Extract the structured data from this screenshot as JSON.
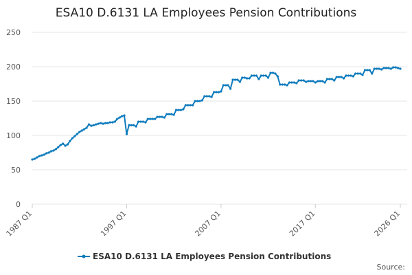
{
  "chart_data": {
    "type": "line",
    "title": "ESA10 D.6131 LA Employees Pension Contributions",
    "source": "Source:",
    "x": [
      "1987 Q1",
      "1987 Q2",
      "1987 Q3",
      "1987 Q4",
      "1988 Q1",
      "1988 Q2",
      "1988 Q3",
      "1988 Q4",
      "1989 Q1",
      "1989 Q2",
      "1989 Q3",
      "1989 Q4",
      "1990 Q1",
      "1990 Q2",
      "1990 Q3",
      "1990 Q4",
      "1991 Q1",
      "1991 Q2",
      "1991 Q3",
      "1991 Q4",
      "1992 Q1",
      "1992 Q2",
      "1992 Q3",
      "1992 Q4",
      "1993 Q1",
      "1993 Q2",
      "1993 Q3",
      "1993 Q4",
      "1994 Q1",
      "1994 Q2",
      "1994 Q3",
      "1994 Q4",
      "1995 Q1",
      "1995 Q2",
      "1995 Q3",
      "1995 Q4",
      "1996 Q1",
      "1996 Q2",
      "1996 Q3",
      "1996 Q4",
      "1997 Q1",
      "1997 Q2",
      "1997 Q3",
      "1997 Q4",
      "1998 Q1",
      "1998 Q2",
      "1998 Q3",
      "1998 Q4",
      "1999 Q1",
      "1999 Q2",
      "1999 Q3",
      "1999 Q4",
      "2000 Q1",
      "2000 Q2",
      "2000 Q3",
      "2000 Q4",
      "2001 Q1",
      "2001 Q2",
      "2001 Q3",
      "2001 Q4",
      "2002 Q1",
      "2002 Q2",
      "2002 Q3",
      "2002 Q4",
      "2003 Q1",
      "2003 Q2",
      "2003 Q3",
      "2003 Q4",
      "2004 Q1",
      "2004 Q2",
      "2004 Q3",
      "2004 Q4",
      "2005 Q1",
      "2005 Q2",
      "2005 Q3",
      "2005 Q4",
      "2006 Q1",
      "2006 Q2",
      "2006 Q3",
      "2006 Q4",
      "2007 Q1",
      "2007 Q2",
      "2007 Q3",
      "2007 Q4",
      "2008 Q1",
      "2008 Q2",
      "2008 Q3",
      "2008 Q4",
      "2009 Q1",
      "2009 Q2",
      "2009 Q3",
      "2009 Q4",
      "2010 Q1",
      "2010 Q2",
      "2010 Q3",
      "2010 Q4",
      "2011 Q1",
      "2011 Q2",
      "2011 Q3",
      "2011 Q4",
      "2012 Q1",
      "2012 Q2",
      "2012 Q3",
      "2012 Q4",
      "2013 Q1",
      "2013 Q2",
      "2013 Q3",
      "2013 Q4",
      "2014 Q1",
      "2014 Q2",
      "2014 Q3",
      "2014 Q4",
      "2015 Q1",
      "2015 Q2",
      "2015 Q3",
      "2015 Q4",
      "2016 Q1",
      "2016 Q2",
      "2016 Q3",
      "2016 Q4",
      "2017 Q1",
      "2017 Q2",
      "2017 Q3",
      "2017 Q4",
      "2018 Q1",
      "2018 Q2",
      "2018 Q3",
      "2018 Q4",
      "2019 Q1",
      "2019 Q2",
      "2019 Q3",
      "2019 Q4",
      "2020 Q1",
      "2020 Q2",
      "2020 Q3",
      "2020 Q4",
      "2021 Q1",
      "2021 Q2",
      "2021 Q3",
      "2021 Q4",
      "2022 Q1",
      "2022 Q2",
      "2022 Q3",
      "2022 Q4",
      "2023 Q1",
      "2023 Q2",
      "2023 Q3",
      "2023 Q4",
      "2024 Q1",
      "2024 Q2",
      "2024 Q3",
      "2024 Q4",
      "2025 Q1",
      "2025 Q2",
      "2025 Q3",
      "2025 Q4",
      "2026 Q1"
    ],
    "series": [
      {
        "name": "ESA10 D.6131 LA Employees Pension Contributions",
        "color": "#0e7bbd",
        "values": [
          65,
          66,
          68,
          70,
          71,
          72,
          74,
          75,
          77,
          78,
          80,
          83,
          86,
          88,
          85,
          87,
          92,
          96,
          99,
          102,
          105,
          107,
          109,
          111,
          116,
          114,
          115,
          116,
          117,
          118,
          117,
          118,
          118,
          119,
          119,
          120,
          124,
          126,
          128,
          129,
          102,
          115,
          115,
          115,
          113,
          120,
          120,
          120,
          119,
          124,
          124,
          124,
          124,
          127,
          127,
          127,
          126,
          131,
          131,
          131,
          130,
          137,
          137,
          137,
          138,
          144,
          144,
          144,
          144,
          150,
          150,
          150,
          151,
          157,
          157,
          157,
          156,
          163,
          163,
          163,
          164,
          173,
          173,
          173,
          168,
          181,
          181,
          181,
          178,
          184,
          184,
          183,
          183,
          187,
          187,
          187,
          182,
          187,
          187,
          187,
          184,
          191,
          191,
          190,
          186,
          174,
          174,
          174,
          173,
          177,
          177,
          177,
          176,
          180,
          180,
          180,
          178,
          179,
          179,
          179,
          177,
          179,
          179,
          179,
          177,
          182,
          182,
          182,
          180,
          185,
          185,
          185,
          183,
          187,
          187,
          187,
          186,
          190,
          190,
          190,
          188,
          195,
          195,
          195,
          190,
          197,
          197,
          197,
          196,
          198,
          198,
          198,
          197,
          199,
          199,
          198,
          197
        ]
      }
    ],
    "xticks": [
      "1987 Q1",
      "1997 Q1",
      "2007 Q1",
      "2017 Q1",
      "2026 Q1"
    ],
    "ylim": [
      0,
      250
    ],
    "yticks": [
      0,
      50,
      100,
      150,
      200,
      250
    ],
    "grid": true,
    "legend": "bottom"
  }
}
